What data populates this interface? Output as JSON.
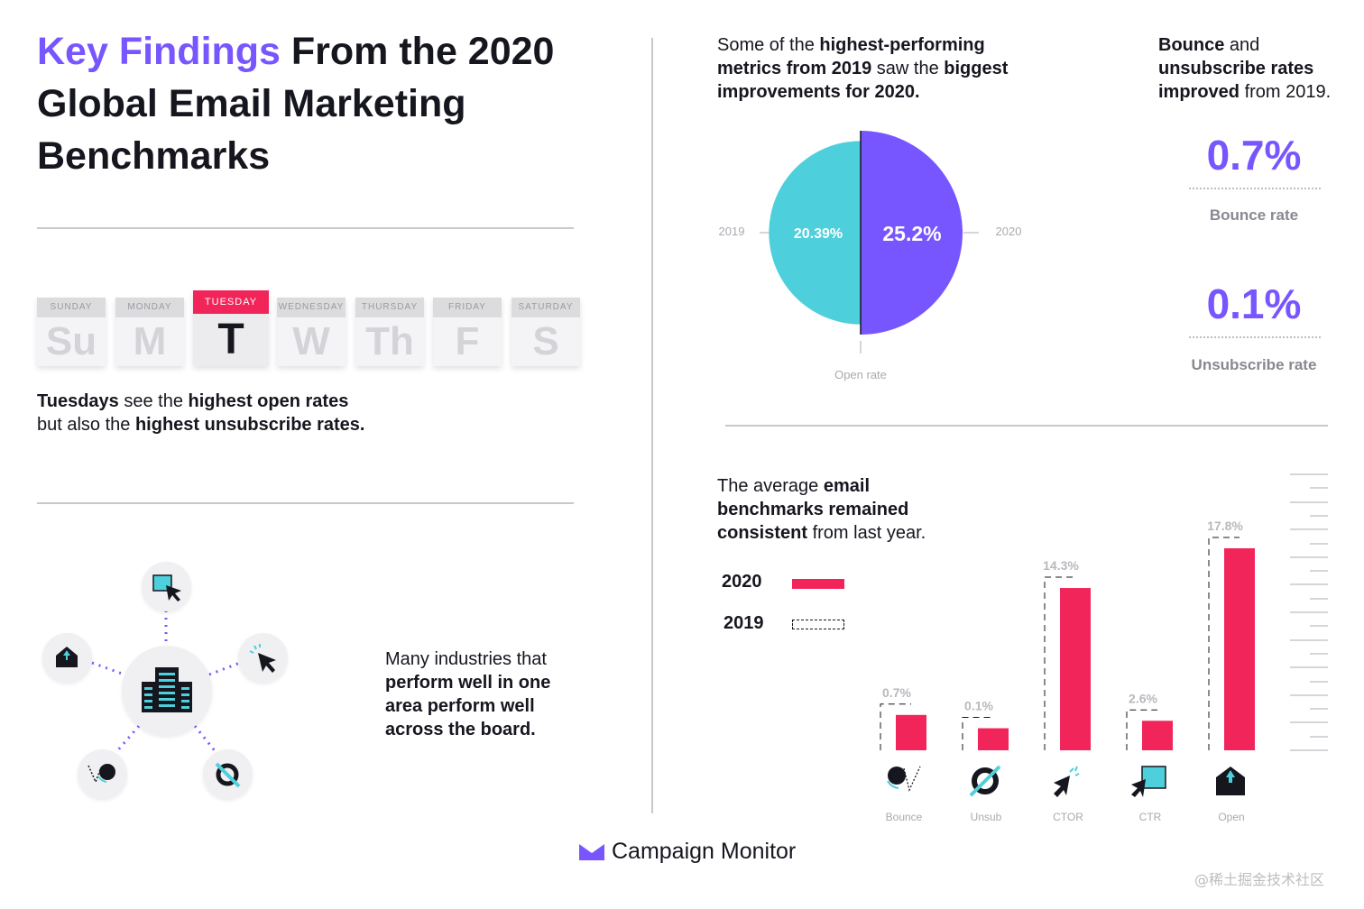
{
  "title": {
    "highlight": "Key Findings",
    "rest": " From the 2020 Global Email Marketing Benchmarks"
  },
  "days": {
    "intro_bold1": "Tuesdays",
    "intro_text1": " see the ",
    "intro_bold2": "highest open rates",
    "intro_text2": "but also the ",
    "intro_bold3": "highest unsubscribe rates.",
    "items": [
      {
        "label": "SUNDAY",
        "short": "Su"
      },
      {
        "label": "MONDAY",
        "short": "M"
      },
      {
        "label": "TUESDAY",
        "short": "T"
      },
      {
        "label": "WEDNESDAY",
        "short": "W"
      },
      {
        "label": "THURSDAY",
        "short": "Th"
      },
      {
        "label": "FRIDAY",
        "short": "F"
      },
      {
        "label": "SATURDAY",
        "short": "S"
      }
    ]
  },
  "industries": {
    "line1": "Many industries that",
    "line2": "perform well in one",
    "line3": "area perform well",
    "line4": "across the board."
  },
  "open_rate": {
    "intro_t1": "Some of the ",
    "intro_b1": "highest-performing",
    "intro_b2": "metrics from 2019",
    "intro_t2": " saw the ",
    "intro_b3": "biggest",
    "intro_b4": "improvements for 2020."
  },
  "rates": {
    "intro_b1": "Bounce",
    "intro_t1": " and",
    "intro_b2": "unsubscribe rates",
    "intro_b3": "improved",
    "intro_t2": " from 2019.",
    "bounce_value": "0.7%",
    "bounce_label": "Bounce rate",
    "unsub_value": "0.1%",
    "unsub_label": "Unsubscribe rate"
  },
  "benchmarks": {
    "intro_t1": "The average ",
    "intro_b1": "email",
    "intro_b2": "benchmarks remained",
    "intro_b3": "consistent",
    "intro_t2": " from last year."
  },
  "chart_data": [
    {
      "type": "pie",
      "xlabel": "Open rate",
      "labels": [
        "2019",
        "2020"
      ],
      "values": [
        20.39,
        25.2
      ],
      "value_labels": [
        "20.39%",
        "25.2%"
      ],
      "colors": [
        "#4ecfdc",
        "#7856ff"
      ]
    },
    {
      "type": "bar",
      "categories": [
        "Bounce",
        "Unsub",
        "CTOR",
        "CTR",
        "Open"
      ],
      "series": [
        {
          "name": "2020",
          "values": [
            0.7,
            0.1,
            14.3,
            2.6,
            17.8
          ],
          "value_labels": [
            "0.7%",
            "0.1%",
            "14.3%",
            "2.6%",
            "17.8%"
          ],
          "color": "#f2255a"
        },
        {
          "name": "2019",
          "values": [
            0.7,
            0.1,
            14.3,
            2.6,
            17.8
          ],
          "style": "dashed outline",
          "color": "#8a8a90"
        }
      ],
      "legend": "top-left"
    }
  ],
  "brand": {
    "name": "Campaign Monitor",
    "color": "#7856ff"
  },
  "watermark": "@稀土掘金技术社区"
}
